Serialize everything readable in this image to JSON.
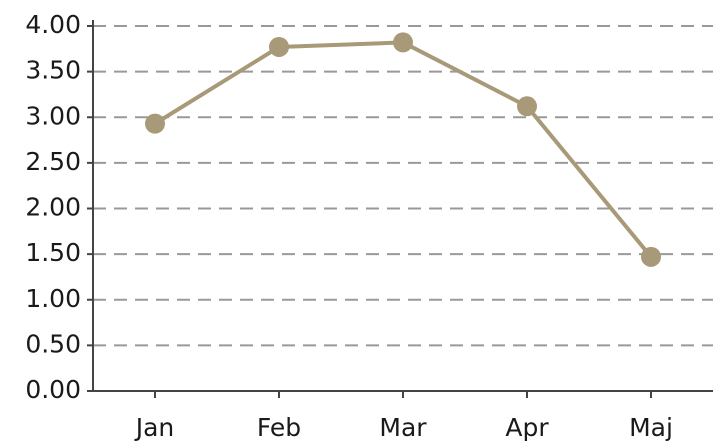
{
  "chart_data": {
    "type": "line",
    "categories": [
      "Jan",
      "Feb",
      "Mar",
      "Apr",
      "Maj"
    ],
    "series": [
      {
        "color": "#a89a78",
        "values": [
          2.93,
          3.77,
          3.82,
          3.12,
          1.47
        ]
      }
    ],
    "ylim": [
      0,
      4
    ],
    "yticks": [
      {
        "value": 0,
        "label": "0.00"
      },
      {
        "value": 0.5,
        "label": "0.50"
      },
      {
        "value": 1,
        "label": "1.00"
      },
      {
        "value": 1.5,
        "label": "1.50"
      },
      {
        "value": 2,
        "label": "2.00"
      },
      {
        "value": 2.5,
        "label": "2.50"
      },
      {
        "value": 3,
        "label": "3.00"
      },
      {
        "value": 3.5,
        "label": "3.50"
      },
      {
        "value": 4,
        "label": "4.00"
      }
    ],
    "grid": true
  }
}
